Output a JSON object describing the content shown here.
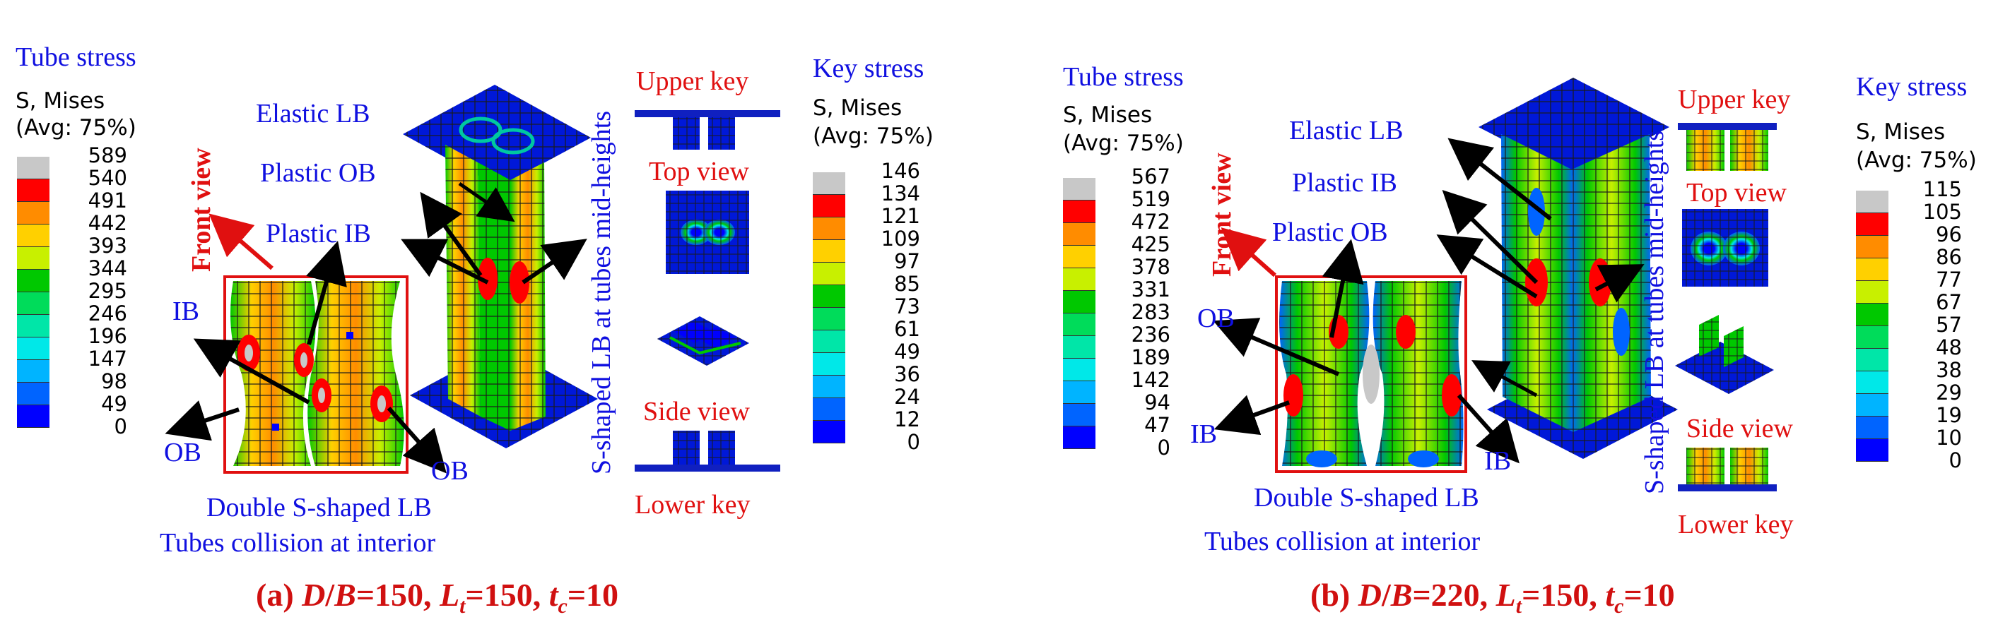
{
  "colors": {
    "label_blue": "#1010e0",
    "label_red": "#e01010",
    "contour_scale": [
      "#c8c8c8",
      "#ff0000",
      "#ff8c00",
      "#ffd000",
      "#c8f000",
      "#00c800",
      "#00dc5a",
      "#00e6a8",
      "#00e8e8",
      "#00b4ff",
      "#0064ff",
      "#0000ff"
    ]
  },
  "panel_a": {
    "tube_legend_title": "Tube stress",
    "tube_s_label": "S, Mises",
    "tube_avg_label": "(Avg: 75%)",
    "tube_ticks": [
      "589",
      "540",
      "491",
      "442",
      "393",
      "344",
      "295",
      "246",
      "196",
      "147",
      "98",
      "49",
      "0"
    ],
    "front_view": "Front view",
    "ib_label": "IB",
    "ob_left_label": "OB",
    "ob_right_label": "OB",
    "elastic_lb": "Elastic LB",
    "plastic_ob": "Plastic OB",
    "plastic_ib": "Plastic IB",
    "double_s": "Double S-shaped LB",
    "collision": "Tubes collision at interior",
    "vertical_note": "S-shaped LB at tubes mid-heights",
    "upper_key": "Upper key",
    "top_view": "Top view",
    "side_view": "Side view",
    "lower_key": "Lower key",
    "key_legend_title": "Key stress",
    "key_s_label": "S, Mises",
    "key_avg_label": "(Avg: 75%)",
    "key_ticks": [
      "146",
      "134",
      "121",
      "109",
      "97",
      "85",
      "73",
      "61",
      "49",
      "36",
      "24",
      "12",
      "0"
    ],
    "caption": {
      "prefix": "(a) ",
      "d": "D",
      "slash": "/",
      "b": "B",
      "eq1": "=150, ",
      "l": "L",
      "lsub": "t",
      "eq2": "=150, ",
      "t": "t",
      "tsub": "c",
      "eq3": "=10"
    }
  },
  "panel_b": {
    "tube_legend_title": "Tube stress",
    "tube_s_label": "S, Mises",
    "tube_avg_label": "(Avg: 75%)",
    "tube_ticks": [
      "567",
      "519",
      "472",
      "425",
      "378",
      "331",
      "283",
      "236",
      "189",
      "142",
      "94",
      "47",
      "0"
    ],
    "front_view": "Front view",
    "ob_label": "OB",
    "ib_left_label": "IB",
    "ib_right_label": "IB",
    "elastic_lb": "Elastic LB",
    "plastic_ib": "Plastic IB",
    "plastic_ob": "Plastic OB",
    "double_s": "Double S-shaped LB",
    "collision": "Tubes collision at interior",
    "vertical_note": "S-shaped LB at tubes mid-heights",
    "upper_key": "Upper key",
    "top_view": "Top view",
    "side_view": "Side view",
    "lower_key": "Lower key",
    "key_legend_title": "Key stress",
    "key_s_label": "S, Mises",
    "key_avg_label": "(Avg: 75%)",
    "key_ticks": [
      "115",
      "105",
      "96",
      "86",
      "77",
      "67",
      "57",
      "48",
      "38",
      "29",
      "19",
      "10",
      "0"
    ],
    "caption": {
      "prefix": "(b) ",
      "d": "D",
      "slash": "/",
      "b": "B",
      "eq1": "=220, ",
      "l": "L",
      "lsub": "t",
      "eq2": "=150, ",
      "t": "t",
      "tsub": "c",
      "eq3": "=10"
    }
  }
}
